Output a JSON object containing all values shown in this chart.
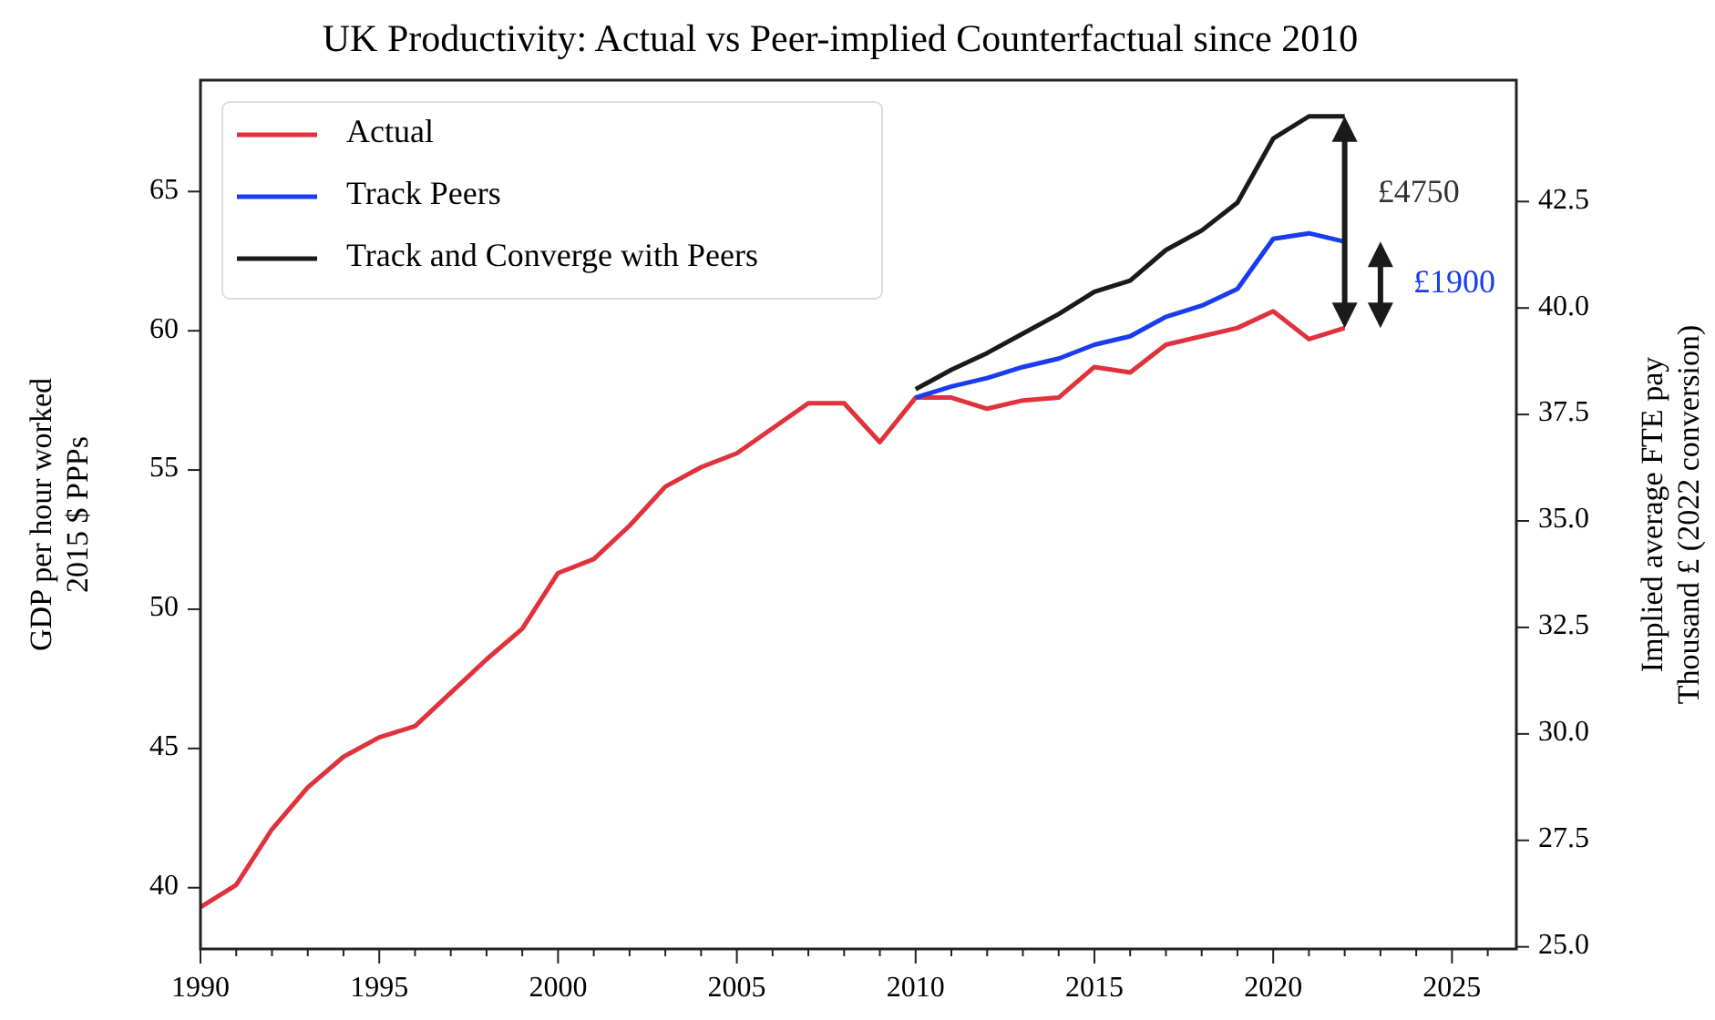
{
  "chart_data": {
    "type": "line",
    "title": "UK Productivity: Actual vs Peer-implied Counterfactual since 2010",
    "ylabel": "GDP per hour worked\n2015 $ PPPs",
    "y2label": "Implied average FTE pay\nThousand £ (2022 conversion)",
    "xlim": [
      1990,
      2026.8
    ],
    "ylim": [
      37.8,
      69
    ],
    "y2lim": [
      24.95,
      45.35
    ],
    "xticks": [
      1990,
      {
        "value": 1991,
        "label": null
      },
      {
        "value": 1992,
        "label": null
      },
      {
        "value": 1993,
        "label": null
      },
      {
        "value": 1994,
        "label": null
      },
      1995,
      {
        "value": 1996,
        "label": null
      },
      {
        "value": 1997,
        "label": null
      },
      {
        "value": 1998,
        "label": null
      },
      {
        "value": 1999,
        "label": null
      },
      2000,
      {
        "value": 2001,
        "label": null
      },
      {
        "value": 2002,
        "label": null
      },
      {
        "value": 2003,
        "label": null
      },
      {
        "value": 2004,
        "label": null
      },
      2005,
      {
        "value": 2006,
        "label": null
      },
      {
        "value": 2007,
        "label": null
      },
      {
        "value": 2008,
        "label": null
      },
      {
        "value": 2009,
        "label": null
      },
      2010,
      {
        "value": 2011,
        "label": null
      },
      {
        "value": 2012,
        "label": null
      },
      {
        "value": 2013,
        "label": null
      },
      {
        "value": 2014,
        "label": null
      },
      2015,
      {
        "value": 2016,
        "label": null
      },
      {
        "value": 2017,
        "label": null
      },
      {
        "value": 2018,
        "label": null
      },
      {
        "value": 2019,
        "label": null
      },
      2020,
      {
        "value": 2021,
        "label": null
      },
      {
        "value": 2022,
        "label": null
      },
      {
        "value": 2023,
        "label": null
      },
      {
        "value": 2024,
        "label": null
      },
      2025,
      {
        "value": 2026,
        "label": null
      }
    ],
    "yticks": [
      40,
      45,
      50,
      55,
      60,
      65
    ],
    "y2ticks": [
      {
        "value": 25,
        "label": "25.0"
      },
      27.5,
      {
        "value": 30,
        "label": "30.0"
      },
      32.5,
      {
        "value": 35,
        "label": "35.0"
      },
      37.5,
      {
        "value": 40,
        "label": "40.0"
      },
      42.5
    ],
    "legend": "top left",
    "grid": false,
    "line_style": "solid",
    "series": [
      {
        "name": "Actual",
        "color": "#e0323c",
        "x": [
          1990,
          1991,
          1992,
          1993,
          1994,
          1995,
          1996,
          1997,
          1998,
          1999,
          2000,
          2001,
          2002,
          2003,
          2004,
          2005,
          2006,
          2007,
          2008,
          2009,
          2010,
          2011,
          2012,
          2013,
          2014,
          2015,
          2016,
          2017,
          2018,
          2019,
          2020,
          2021,
          2022
        ],
        "values": [
          39.3,
          40.1,
          42.1,
          43.6,
          44.7,
          45.4,
          45.8,
          47.0,
          48.2,
          49.3,
          51.3,
          51.8,
          53.0,
          54.4,
          55.1,
          55.6,
          56.5,
          57.4,
          57.4,
          56.0,
          57.6,
          57.6,
          57.2,
          57.5,
          57.6,
          58.7,
          58.5,
          59.5,
          59.8,
          60.1,
          60.7,
          59.7,
          60.1
        ]
      },
      {
        "name": "Track Peers",
        "color": "#1a3cf0",
        "x": [
          2010,
          2011,
          2012,
          2013,
          2014,
          2015,
          2016,
          2017,
          2018,
          2019,
          2020,
          2021,
          2022
        ],
        "values": [
          57.6,
          58.0,
          58.3,
          58.7,
          59.0,
          59.5,
          59.8,
          60.5,
          60.9,
          61.5,
          63.3,
          63.5,
          63.2
        ]
      },
      {
        "name": "Track and Converge with Peers",
        "color": "#1a1a1a",
        "x": [
          2010,
          2011,
          2012,
          2013,
          2014,
          2015,
          2016,
          2017,
          2018,
          2019,
          2020,
          2021,
          2022
        ],
        "values": [
          57.9,
          58.6,
          59.2,
          59.9,
          60.6,
          61.4,
          61.8,
          62.9,
          63.6,
          64.6,
          66.9,
          67.7,
          67.7
        ]
      }
    ],
    "annotations": [
      "£4750",
      "£1900"
    ]
  }
}
